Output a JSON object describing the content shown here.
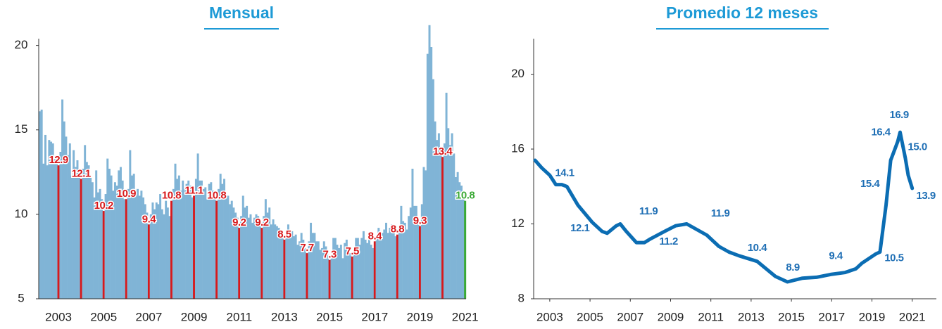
{
  "chart_data": [
    {
      "type": "bar",
      "title": "Mensual",
      "categories": [
        null,
        null,
        null,
        null,
        null,
        null,
        null,
        null,
        null,
        null,
        "2003",
        null,
        null,
        null,
        null,
        null,
        null,
        null,
        null,
        null,
        null,
        null,
        null,
        null,
        null,
        null,
        null,
        null,
        null,
        null,
        null,
        null,
        null,
        null,
        "2005",
        null,
        null,
        null,
        null,
        null,
        null,
        null,
        null,
        null,
        null,
        null,
        null,
        null,
        null,
        null,
        null,
        null,
        null,
        null,
        null,
        null,
        null,
        null,
        "2007",
        null,
        null,
        null,
        null,
        null,
        null,
        null,
        null,
        null,
        null,
        null,
        null,
        null,
        null,
        null,
        null,
        null,
        null,
        null,
        null,
        null,
        null,
        null,
        "2009",
        null,
        null,
        null,
        null,
        null,
        null,
        null,
        null,
        null,
        null,
        null,
        null,
        null,
        null,
        null,
        null,
        null,
        null,
        null,
        null,
        null,
        null,
        null,
        "2011",
        null,
        null,
        null,
        null,
        null,
        null,
        null,
        null,
        null,
        null,
        null,
        null,
        null,
        null,
        null,
        null,
        null,
        null,
        null,
        null,
        null,
        null,
        null,
        "2013",
        null,
        null,
        null,
        null,
        null,
        null,
        null,
        null,
        null,
        null,
        null,
        null,
        null,
        null,
        null,
        null,
        null,
        null,
        null,
        null,
        null,
        null,
        null,
        "2015",
        null,
        null,
        null,
        null,
        null,
        null,
        null,
        null,
        null,
        null,
        null,
        null,
        null,
        null,
        null,
        null,
        null,
        null,
        null,
        null,
        null,
        null,
        null,
        "2017",
        null,
        null,
        null,
        null,
        null,
        null,
        null,
        null,
        null,
        null,
        null,
        null,
        null,
        null,
        null,
        null,
        null,
        null,
        null,
        null,
        null,
        null,
        null,
        "2019",
        null,
        null,
        null,
        null,
        null,
        null,
        null,
        null,
        null,
        null,
        null,
        null,
        null,
        null,
        null,
        null,
        null,
        null,
        null,
        null,
        null,
        null,
        null,
        "2021"
      ],
      "values": [
        16.1,
        16.2,
        13.0,
        14.7,
        12.9,
        14.4,
        14.3,
        14.2,
        13.4,
        13.5,
        12.9,
        13.7,
        16.8,
        15.5,
        14.6,
        13.5,
        14.2,
        12.3,
        13.8,
        12.8,
        13.2,
        12.6,
        12.1,
        12.7,
        14.1,
        13.1,
        12.9,
        12.3,
        11.9,
        11.0,
        12.6,
        11.3,
        11.5,
        10.9,
        10.2,
        11.2,
        13.3,
        12.7,
        12.3,
        11.4,
        11.9,
        11.7,
        12.6,
        12.8,
        12.0,
        10.9,
        10.9,
        11.5,
        13.8,
        12.3,
        12.4,
        11.3,
        11.5,
        11.1,
        11.4,
        11.0,
        10.6,
        10.1,
        9.4,
        10.0,
        10.7,
        10.3,
        10.7,
        10.6,
        11.2,
        10.3,
        10.0,
        10.8,
        10.4,
        9.9,
        10.8,
        11.5,
        13.0,
        12.1,
        12.3,
        11.4,
        12.0,
        11.5,
        11.8,
        12.0,
        11.7,
        11.0,
        11.1,
        12.1,
        13.6,
        12.0,
        12.0,
        11.5,
        11.6,
        10.9,
        11.8,
        11.9,
        11.4,
        11.0,
        10.8,
        11.5,
        12.4,
        11.8,
        12.1,
        11.0,
        11.1,
        10.6,
        10.8,
        10.4,
        10.1,
        9.8,
        9.2,
        9.9,
        11.1,
        10.4,
        10.5,
        9.8,
        10.0,
        9.5,
        9.8,
        10.0,
        9.9,
        9.5,
        9.2,
        9.9,
        10.9,
        10.1,
        10.4,
        9.4,
        9.7,
        9.4,
        9.3,
        9.2,
        9.0,
        8.7,
        8.5,
        8.8,
        9.4,
        9.0,
        9.0,
        8.7,
        8.8,
        8.2,
        8.4,
        8.9,
        8.5,
        8.0,
        7.7,
        8.4,
        9.5,
        8.9,
        8.9,
        8.4,
        8.4,
        7.9,
        8.0,
        8.4,
        8.1,
        7.6,
        7.3,
        7.6,
        8.6,
        8.6,
        8.2,
        8.0,
        8.2,
        7.4,
        8.3,
        8.5,
        8.1,
        7.7,
        7.5,
        7.8,
        8.6,
        8.6,
        8.2,
        8.6,
        9.0,
        8.5,
        8.3,
        8.6,
        8.2,
        8.0,
        8.4,
        8.7,
        9.2,
        9.0,
        8.9,
        9.1,
        9.5,
        8.9,
        9.2,
        9.4,
        9.3,
        8.7,
        8.8,
        9.3,
        10.5,
        9.6,
        9.5,
        9.1,
        9.9,
        10.4,
        12.7,
        10.5,
        10.5,
        9.8,
        9.3,
        10.6,
        12.8,
        12.6,
        19.5,
        21.2,
        19.9,
        18.0,
        15.5,
        14.4,
        14.8,
        13.9,
        13.4,
        14.2,
        17.2,
        15.1,
        14.1,
        14.8,
        13.6,
        12.2,
        12.5,
        11.9,
        11.7,
        11.0,
        10.8
      ],
      "colors": [
        "#80b4d6",
        "#80b4d6",
        "#80b4d6",
        "#80b4d6",
        "#80b4d6",
        "#80b4d6",
        "#80b4d6",
        "#80b4d6",
        "#80b4d6",
        "#80b4d6",
        "#d7191c",
        "#80b4d6",
        "#80b4d6",
        "#80b4d6",
        "#80b4d6",
        "#80b4d6",
        "#80b4d6",
        "#80b4d6",
        "#80b4d6",
        "#80b4d6",
        "#80b4d6",
        "#80b4d6",
        "#d7191c",
        "#80b4d6",
        "#80b4d6",
        "#80b4d6",
        "#80b4d6",
        "#80b4d6",
        "#80b4d6",
        "#80b4d6",
        "#80b4d6",
        "#80b4d6",
        "#80b4d6",
        "#80b4d6",
        "#d7191c",
        "#80b4d6",
        "#80b4d6",
        "#80b4d6",
        "#80b4d6",
        "#80b4d6",
        "#80b4d6",
        "#80b4d6",
        "#80b4d6",
        "#80b4d6",
        "#80b4d6",
        "#80b4d6",
        "#d7191c",
        "#80b4d6",
        "#80b4d6",
        "#80b4d6",
        "#80b4d6",
        "#80b4d6",
        "#80b4d6",
        "#80b4d6",
        "#80b4d6",
        "#80b4d6",
        "#80b4d6",
        "#80b4d6",
        "#d7191c",
        "#80b4d6",
        "#80b4d6",
        "#80b4d6",
        "#80b4d6",
        "#80b4d6",
        "#80b4d6",
        "#80b4d6",
        "#80b4d6",
        "#80b4d6",
        "#80b4d6",
        "#80b4d6",
        "#d7191c",
        "#80b4d6",
        "#80b4d6",
        "#80b4d6",
        "#80b4d6",
        "#80b4d6",
        "#80b4d6",
        "#80b4d6",
        "#80b4d6",
        "#80b4d6",
        "#80b4d6",
        "#80b4d6",
        "#d7191c",
        "#80b4d6",
        "#80b4d6",
        "#80b4d6",
        "#80b4d6",
        "#80b4d6",
        "#80b4d6",
        "#80b4d6",
        "#80b4d6",
        "#80b4d6",
        "#80b4d6",
        "#80b4d6",
        "#d7191c",
        "#80b4d6",
        "#80b4d6",
        "#80b4d6",
        "#80b4d6",
        "#80b4d6",
        "#80b4d6",
        "#80b4d6",
        "#80b4d6",
        "#80b4d6",
        "#80b4d6",
        "#80b4d6",
        "#d7191c",
        "#80b4d6",
        "#80b4d6",
        "#80b4d6",
        "#80b4d6",
        "#80b4d6",
        "#80b4d6",
        "#80b4d6",
        "#80b4d6",
        "#80b4d6",
        "#80b4d6",
        "#80b4d6",
        "#d7191c",
        "#80b4d6",
        "#80b4d6",
        "#80b4d6",
        "#80b4d6",
        "#80b4d6",
        "#80b4d6",
        "#80b4d6",
        "#80b4d6",
        "#80b4d6",
        "#80b4d6",
        "#80b4d6",
        "#d7191c",
        "#80b4d6",
        "#80b4d6",
        "#80b4d6",
        "#80b4d6",
        "#80b4d6",
        "#80b4d6",
        "#80b4d6",
        "#80b4d6",
        "#80b4d6",
        "#80b4d6",
        "#80b4d6",
        "#d7191c",
        "#80b4d6",
        "#80b4d6",
        "#80b4d6",
        "#80b4d6",
        "#80b4d6",
        "#80b4d6",
        "#80b4d6",
        "#80b4d6",
        "#80b4d6",
        "#80b4d6",
        "#80b4d6",
        "#d7191c",
        "#80b4d6",
        "#80b4d6",
        "#80b4d6",
        "#80b4d6",
        "#80b4d6",
        "#80b4d6",
        "#80b4d6",
        "#80b4d6",
        "#80b4d6",
        "#80b4d6",
        "#80b4d6",
        "#d7191c",
        "#80b4d6",
        "#80b4d6",
        "#80b4d6",
        "#80b4d6",
        "#80b4d6",
        "#80b4d6",
        "#80b4d6",
        "#80b4d6",
        "#80b4d6",
        "#80b4d6",
        "#80b4d6",
        "#d7191c",
        "#80b4d6",
        "#80b4d6",
        "#80b4d6",
        "#80b4d6",
        "#80b4d6",
        "#80b4d6",
        "#80b4d6",
        "#80b4d6",
        "#80b4d6",
        "#80b4d6",
        "#80b4d6",
        "#d7191c",
        "#80b4d6",
        "#80b4d6",
        "#80b4d6",
        "#80b4d6",
        "#80b4d6",
        "#80b4d6",
        "#80b4d6",
        "#80b4d6",
        "#80b4d6",
        "#80b4d6",
        "#80b4d6",
        "#d7191c",
        "#80b4d6",
        "#80b4d6",
        "#80b4d6",
        "#80b4d6",
        "#80b4d6",
        "#80b4d6",
        "#80b4d6",
        "#80b4d6",
        "#80b4d6",
        "#80b4d6",
        "#80b4d6",
        "#d7191c",
        "#80b4d6",
        "#80b4d6",
        "#80b4d6",
        "#80b4d6",
        "#80b4d6",
        "#80b4d6",
        "#80b4d6",
        "#80b4d6",
        "#80b4d6",
        "#80b4d6",
        "#80b4d6",
        "#3aa935"
      ],
      "ylim": [
        5,
        20.4
      ],
      "yticks": [
        5,
        10,
        15,
        20
      ]
    },
    {
      "type": "line",
      "title": "Promedio 12 meses",
      "color": "#0b6db3",
      "x": [
        2002.27,
        2002.6,
        2003.0,
        2003.3,
        2003.6,
        2003.85,
        2004.4,
        2005.1,
        2005.6,
        2005.85,
        2006.3,
        2006.5,
        2006.8,
        2007.3,
        2007.7,
        2008.0,
        2008.7,
        2009.25,
        2009.8,
        2010.3,
        2010.8,
        2011.4,
        2011.9,
        2012.4,
        2013.3,
        2014.2,
        2014.8,
        2015.55,
        2016.25,
        2016.95,
        2017.65,
        2018.2,
        2018.5,
        2019.2,
        2019.4,
        2019.7,
        2019.93,
        2020.28,
        2020.4,
        2020.66,
        2020.8,
        2021.0
      ],
      "values": [
        15.4,
        15.0,
        14.6,
        14.1,
        14.1,
        14.0,
        13.0,
        12.1,
        11.6,
        11.5,
        11.9,
        12.0,
        11.6,
        11.0,
        11.0,
        11.2,
        11.6,
        11.9,
        12.0,
        11.7,
        11.4,
        10.8,
        10.5,
        10.3,
        10.0,
        9.2,
        8.9,
        9.1,
        9.15,
        9.3,
        9.4,
        9.6,
        9.9,
        10.4,
        10.5,
        13.0,
        15.4,
        16.4,
        16.9,
        15.5,
        14.6,
        13.9
      ],
      "annotations": [
        {
          "x": 2003.74,
          "y": 14.1
        },
        {
          "x": 2004.5,
          "y": 12.1
        },
        {
          "x": 2007.9,
          "y": 11.9
        },
        {
          "x": 2008.9,
          "y": 11.2
        },
        {
          "x": 2011.47,
          "y": 11.9
        },
        {
          "x": 2013.3,
          "y": 10.4
        },
        {
          "x": 2015.07,
          "y": 8.9
        },
        {
          "x": 2017.2,
          "y": 9.4
        },
        {
          "x": 2018.9,
          "y": 15.4
        },
        {
          "x": 2020.1,
          "y": 10.5
        },
        {
          "x": 2019.44,
          "y": 16.4
        },
        {
          "x": 2020.35,
          "y": 16.9
        },
        {
          "x": 2021.26,
          "y": 15,
          "label": "15.0"
        },
        {
          "x": 2021.68,
          "y": 13.9
        }
      ],
      "xlim": [
        2002.2,
        2022.2
      ],
      "xticks": [
        2003,
        2005,
        2007,
        2009,
        2011,
        2013,
        2015,
        2017,
        2019,
        2021
      ],
      "ylim": [
        8,
        21.9
      ],
      "yticks": [
        8,
        12,
        16,
        20
      ]
    }
  ]
}
